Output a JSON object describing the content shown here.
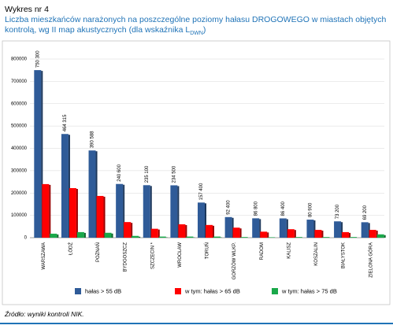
{
  "chart_data": {
    "type": "bar",
    "label": "Wykres nr 4",
    "title": "Liczba mieszkańców narażonych na poszczególne poziomy hałasu DROGOWEGO w miastach objętych kontrolą, wg II map akustycznych (dla wskaźnika L",
    "title_subscript": "DWN",
    "title_end": ")",
    "source": "Źródło: wyniki kontroli NIK.",
    "categories": [
      "WARSZAWA",
      "ŁÓDŹ",
      "POZNAŃ",
      "BYDGOSZCZ",
      "SZCZECIN *",
      "WROCŁAW",
      "TORUŃ",
      "GORZÓW WLKP.",
      "RADOM",
      "KALISZ",
      "KOSZALIN",
      "BIAŁYSTOK",
      "ZIELONA GÓRA"
    ],
    "series": [
      {
        "name": "hałas > 55 dB",
        "color": "#2f5b98",
        "values": [
          750300,
          464315,
          390588,
          240600,
          235100,
          234500,
          157400,
          92400,
          86800,
          86400,
          80900,
          73200,
          69200
        ],
        "value_labels": [
          "750 300",
          "464 315",
          "390 588",
          "240 600",
          "235 100",
          "234 500",
          "157 400",
          "92 400",
          "86 800",
          "86 400",
          "80 900",
          "73 200",
          "69 200"
        ]
      },
      {
        "name": "w tym: hałas > 65 dB",
        "color": "#ff0000",
        "values": [
          240000,
          222000,
          187000,
          70000,
          40000,
          60000,
          57000,
          45000,
          27000,
          38000,
          35000,
          25000,
          35000
        ]
      },
      {
        "name": "w tym: hałas > 75 dB",
        "color": "#1aa84a",
        "values": [
          18000,
          25000,
          22000,
          8000,
          5000,
          5000,
          5000,
          3000,
          2000,
          3000,
          3000,
          3000,
          15000
        ]
      }
    ],
    "ylim": [
      0,
      800000
    ],
    "yticks": [
      0,
      100000,
      200000,
      300000,
      400000,
      500000,
      600000,
      700000,
      800000
    ],
    "grid": true,
    "legend": "bottom"
  }
}
